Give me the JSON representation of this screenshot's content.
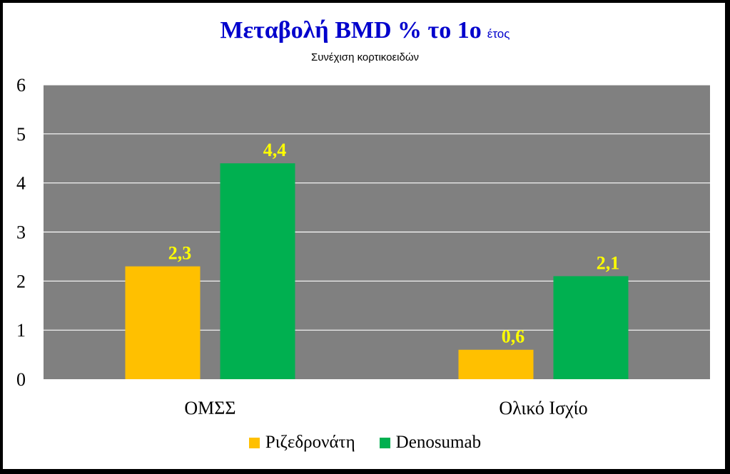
{
  "chart_data": {
    "type": "bar",
    "title": "Μεταβολή BMD % το 1ο",
    "title_suffix": "έτος",
    "subtitle": "Συνέχιση κορτικοειδών",
    "categories": [
      "ΟΜΣΣ",
      "Ολικό Ισχίο"
    ],
    "series": [
      {
        "name": "Ριζεδρονάτη",
        "values": [
          2.3,
          0.6
        ],
        "labels": [
          "2,3",
          "0,6"
        ],
        "color": "#ffc000"
      },
      {
        "name": "Denosumab",
        "values": [
          4.4,
          2.1
        ],
        "labels": [
          "4,4",
          "2,1"
        ],
        "color": "#00b050"
      }
    ],
    "ylim": [
      0,
      6
    ],
    "yticks": [
      "0",
      "1",
      "2",
      "3",
      "4",
      "5",
      "6"
    ],
    "grid": true,
    "legend_position": "bottom",
    "colors": {
      "plot_background": "#808080",
      "gridline": "#ffffff",
      "data_label": "#ffff00",
      "title": "#0000cc"
    }
  }
}
